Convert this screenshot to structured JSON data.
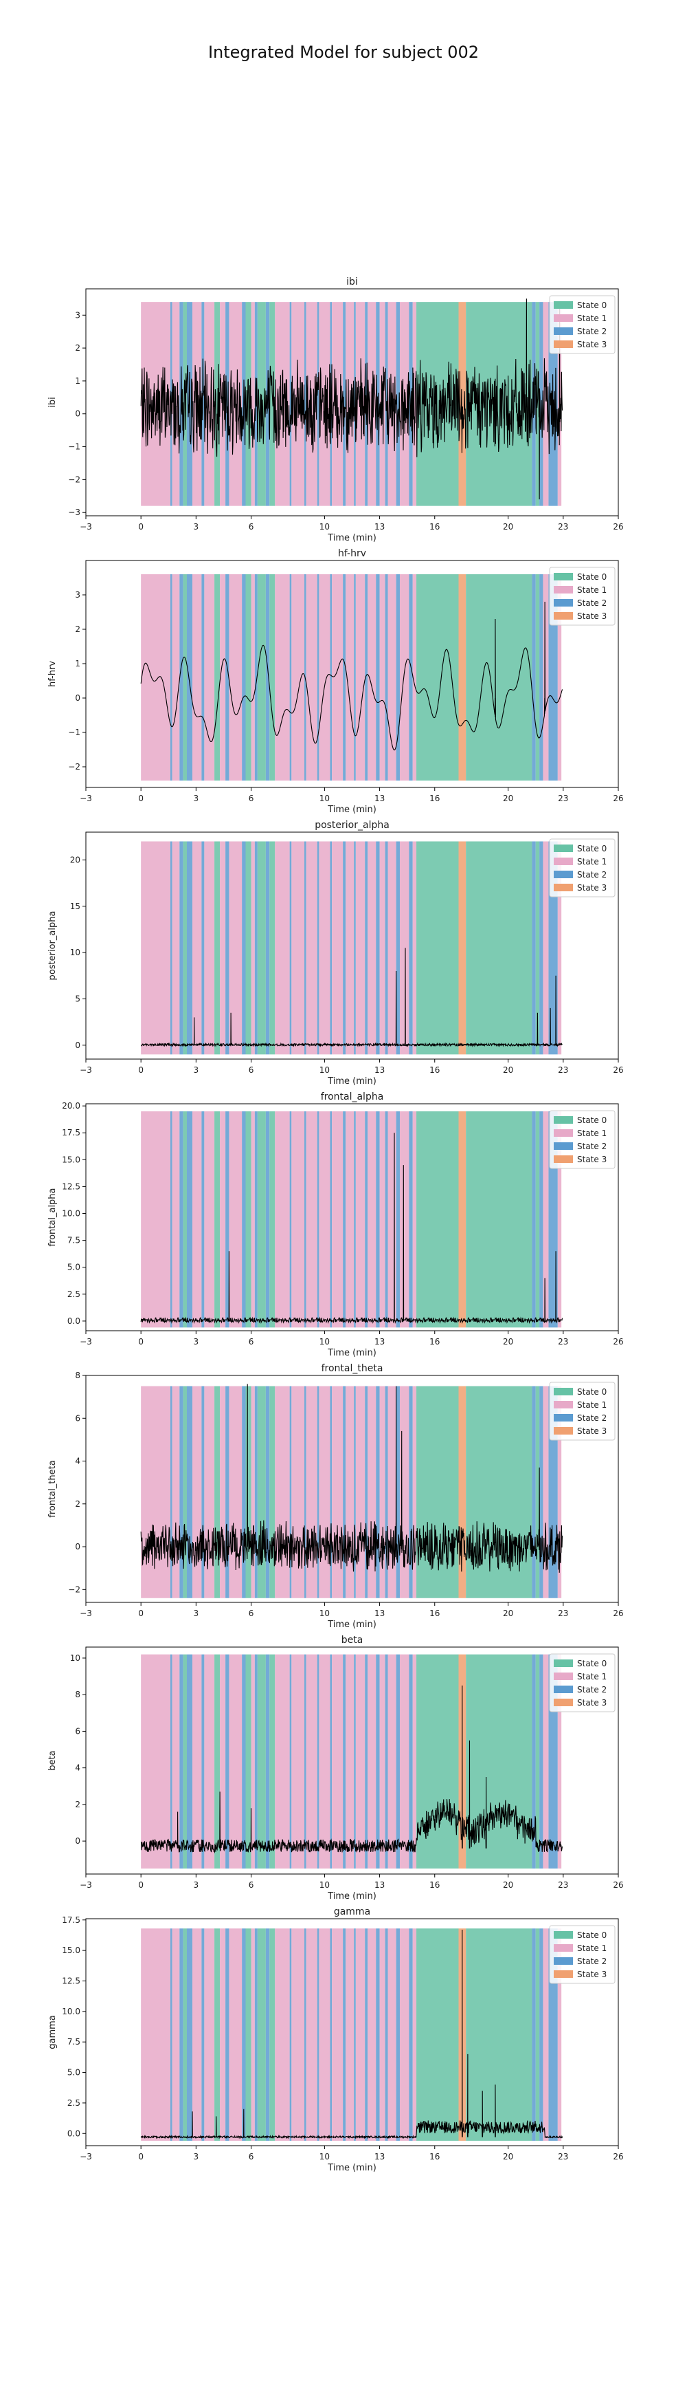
{
  "figure_title": "Integrated Model for subject 002",
  "xlabel": "Time (min)",
  "xticks": [
    -3,
    0,
    3,
    6,
    10,
    13,
    16,
    20,
    23,
    26
  ],
  "xlim": [
    -3,
    26
  ],
  "legend": [
    "State 0",
    "State 1",
    "State 2",
    "State 3"
  ],
  "state_colors": {
    "State 0": "#66c2a5",
    "State 1": "#e7a9c8",
    "State 2": "#5b9bd0",
    "State 3": "#f0a070"
  },
  "line_color": "#000000",
  "chart_data": [
    {
      "type": "line",
      "title": "ibi",
      "ylabel": "ibi",
      "ylim": [
        -3.1,
        3.8
      ],
      "yticks": [
        -3,
        -2,
        -1,
        0,
        1,
        2,
        3
      ],
      "ytick_labels": [
        "−3",
        "−2",
        "−1",
        "0",
        "1",
        "2",
        "3"
      ],
      "band": [
        -2.8,
        3.4
      ],
      "legend_position": "top-right",
      "series": {
        "kind": "noise",
        "base": 0.2,
        "amp": 1.1,
        "spikes": [
          [
            21.0,
            3.5
          ],
          [
            21.7,
            -2.6
          ],
          [
            22.8,
            3.4
          ]
        ]
      }
    },
    {
      "type": "line",
      "title": "hf-hrv",
      "ylabel": "hf-hrv",
      "ylim": [
        -2.6,
        4.0
      ],
      "yticks": [
        -2,
        -1,
        0,
        1,
        2,
        3
      ],
      "ytick_labels": [
        "−2",
        "−1",
        "0",
        "1",
        "2",
        "3"
      ],
      "band": [
        -2.4,
        3.6
      ],
      "legend_position": "top-right",
      "series": {
        "kind": "smooth",
        "base": 0.0,
        "amp": 1.0,
        "spikes": [
          [
            19.3,
            2.3
          ],
          [
            22.0,
            2.8
          ]
        ]
      }
    },
    {
      "type": "line",
      "title": "posterior_alpha",
      "ylabel": "posterior_alpha",
      "ylim": [
        -1.5,
        23.0
      ],
      "yticks": [
        0,
        5,
        10,
        15,
        20
      ],
      "ytick_labels": [
        "0",
        "5",
        "10",
        "15",
        "20"
      ],
      "band": [
        -1.0,
        22.0
      ],
      "legend_position": "top-right",
      "series": {
        "kind": "flat",
        "base": 0.0,
        "amp": 0.25,
        "spikes": [
          [
            2.9,
            3.0
          ],
          [
            4.9,
            3.5
          ],
          [
            13.9,
            8.0
          ],
          [
            14.4,
            10.5
          ],
          [
            21.6,
            3.5
          ],
          [
            22.3,
            4.0
          ],
          [
            22.6,
            7.5
          ]
        ]
      }
    },
    {
      "type": "line",
      "title": "frontal_alpha",
      "ylabel": "frontal_alpha",
      "ylim": [
        -0.9,
        20.2
      ],
      "yticks": [
        0.0,
        2.5,
        5.0,
        7.5,
        10.0,
        12.5,
        15.0,
        17.5,
        20.0
      ],
      "ytick_labels": [
        "0.0",
        "2.5",
        "5.0",
        "7.5",
        "10.0",
        "12.5",
        "15.0",
        "17.5",
        "20.0"
      ],
      "band": [
        -0.6,
        19.5
      ],
      "legend_position": "top-right",
      "series": {
        "kind": "flat",
        "base": 0.0,
        "amp": 0.45,
        "spikes": [
          [
            4.8,
            6.5
          ],
          [
            13.8,
            17.5
          ],
          [
            14.3,
            14.5
          ],
          [
            22.0,
            4.0
          ],
          [
            22.6,
            6.5
          ]
        ]
      }
    },
    {
      "type": "line",
      "title": "frontal_theta",
      "ylabel": "frontal_theta",
      "ylim": [
        -2.6,
        8.0
      ],
      "yticks": [
        -2,
        0,
        2,
        4,
        6,
        8
      ],
      "ytick_labels": [
        "−2",
        "0",
        "2",
        "4",
        "6",
        "8"
      ],
      "band": [
        -2.4,
        7.5
      ],
      "legend_position": "top-right",
      "series": {
        "kind": "noise",
        "base": 0.0,
        "amp": 0.9,
        "spikes": [
          [
            5.8,
            7.6
          ],
          [
            13.9,
            7.5
          ],
          [
            14.2,
            5.4
          ],
          [
            21.7,
            3.7
          ]
        ]
      }
    },
    {
      "type": "line",
      "title": "beta",
      "ylabel": "beta",
      "ylim": [
        -1.8,
        10.6
      ],
      "yticks": [
        0,
        2,
        4,
        6,
        8,
        10
      ],
      "ytick_labels": [
        "0",
        "2",
        "4",
        "6",
        "8",
        "10"
      ],
      "band": [
        -1.5,
        10.2
      ],
      "legend_position": "top-right",
      "series": {
        "kind": "beta",
        "base": -0.4,
        "amp": 0.35,
        "spikes": [
          [
            2.0,
            1.6
          ],
          [
            4.3,
            2.7
          ],
          [
            6.0,
            1.8
          ],
          [
            17.5,
            8.5
          ],
          [
            17.9,
            5.5
          ],
          [
            18.8,
            3.5
          ]
        ]
      }
    },
    {
      "type": "line",
      "title": "gamma",
      "ylabel": "gamma",
      "ylim": [
        -1.0,
        17.6
      ],
      "yticks": [
        0.0,
        2.5,
        5.0,
        7.5,
        10.0,
        12.5,
        15.0,
        17.5
      ],
      "ytick_labels": [
        "0.0",
        "2.5",
        "5.0",
        "7.5",
        "10.0",
        "12.5",
        "15.0",
        "17.5"
      ],
      "band": [
        -0.6,
        16.8
      ],
      "legend_position": "top-right",
      "series": {
        "kind": "gamma",
        "base": -0.3,
        "amp": 0.15,
        "spikes": [
          [
            2.8,
            1.8
          ],
          [
            4.1,
            1.4
          ],
          [
            5.6,
            2.0
          ],
          [
            17.5,
            16.7
          ],
          [
            17.8,
            6.5
          ],
          [
            18.6,
            3.5
          ],
          [
            19.3,
            4.0
          ]
        ]
      }
    }
  ],
  "state_segments": [
    [
      0.0,
      1.6,
      1
    ],
    [
      1.6,
      1.7,
      2
    ],
    [
      1.7,
      2.1,
      1
    ],
    [
      2.1,
      2.3,
      2
    ],
    [
      2.3,
      2.5,
      0
    ],
    [
      2.5,
      2.8,
      2
    ],
    [
      2.8,
      3.3,
      1
    ],
    [
      3.3,
      3.45,
      2
    ],
    [
      3.45,
      4.0,
      1
    ],
    [
      4.0,
      4.3,
      0
    ],
    [
      4.3,
      4.6,
      1
    ],
    [
      4.6,
      4.8,
      2
    ],
    [
      4.8,
      5.5,
      1
    ],
    [
      5.5,
      5.7,
      2
    ],
    [
      5.7,
      6.0,
      0
    ],
    [
      6.0,
      6.2,
      1
    ],
    [
      6.2,
      6.35,
      2
    ],
    [
      6.35,
      6.8,
      0
    ],
    [
      6.8,
      7.0,
      2
    ],
    [
      7.0,
      7.3,
      0
    ],
    [
      7.3,
      8.1,
      1
    ],
    [
      8.1,
      8.2,
      2
    ],
    [
      8.2,
      8.9,
      1
    ],
    [
      8.9,
      9.0,
      2
    ],
    [
      9.0,
      9.6,
      1
    ],
    [
      9.6,
      9.7,
      2
    ],
    [
      9.7,
      10.3,
      1
    ],
    [
      10.3,
      10.4,
      2
    ],
    [
      10.4,
      11.0,
      1
    ],
    [
      11.0,
      11.15,
      2
    ],
    [
      11.15,
      11.6,
      1
    ],
    [
      11.6,
      11.7,
      2
    ],
    [
      11.7,
      12.2,
      1
    ],
    [
      12.2,
      12.35,
      2
    ],
    [
      12.35,
      12.8,
      1
    ],
    [
      12.8,
      13.0,
      2
    ],
    [
      13.0,
      13.3,
      1
    ],
    [
      13.3,
      13.45,
      2
    ],
    [
      13.45,
      13.9,
      1
    ],
    [
      13.9,
      14.1,
      2
    ],
    [
      14.1,
      14.6,
      1
    ],
    [
      14.6,
      14.8,
      2
    ],
    [
      14.8,
      15.0,
      1
    ],
    [
      15.0,
      17.3,
      0
    ],
    [
      17.3,
      17.7,
      3
    ],
    [
      17.7,
      21.3,
      0
    ],
    [
      21.3,
      21.5,
      2
    ],
    [
      21.5,
      21.7,
      0
    ],
    [
      21.7,
      21.9,
      2
    ],
    [
      21.9,
      22.2,
      1
    ],
    [
      22.2,
      22.7,
      2
    ],
    [
      22.7,
      22.9,
      1
    ]
  ]
}
